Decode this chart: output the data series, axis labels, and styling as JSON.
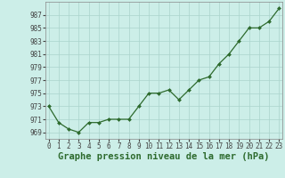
{
  "x": [
    0,
    1,
    2,
    3,
    4,
    5,
    6,
    7,
    8,
    9,
    10,
    11,
    12,
    13,
    14,
    15,
    16,
    17,
    18,
    19,
    20,
    21,
    22,
    23
  ],
  "y": [
    973,
    970.5,
    969.5,
    969,
    970.5,
    970.5,
    971,
    971,
    971,
    973,
    975,
    975,
    975.5,
    974,
    975.5,
    977,
    977.5,
    979.5,
    981,
    983,
    985,
    985,
    986,
    988
  ],
  "line_color": "#2d6a2d",
  "marker_color": "#2d6a2d",
  "bg_color": "#cceee8",
  "grid_color": "#aad4cc",
  "xlabel": "Graphe pression niveau de la mer (hPa)",
  "ylim_min": 968,
  "ylim_max": 989,
  "yticks": [
    969,
    971,
    973,
    975,
    977,
    979,
    981,
    983,
    985,
    987
  ],
  "xticks": [
    0,
    1,
    2,
    3,
    4,
    5,
    6,
    7,
    8,
    9,
    10,
    11,
    12,
    13,
    14,
    15,
    16,
    17,
    18,
    19,
    20,
    21,
    22,
    23
  ],
  "tick_fontsize": 5.5,
  "xlabel_fontsize": 7.5,
  "xlabel_bold": true
}
